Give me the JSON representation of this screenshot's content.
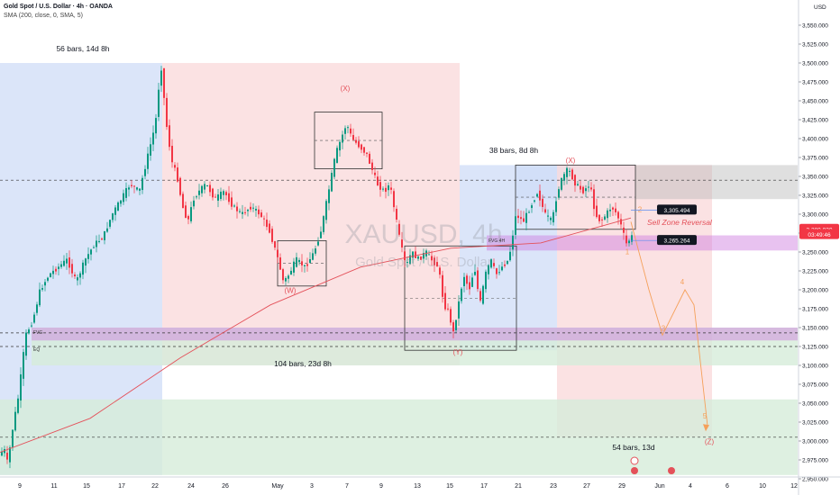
{
  "header": {
    "title": "Gold Spot / U.S. Dollar · 4h · OANDA",
    "indicator": "SMA (200, close, 0, SMA, 5)"
  },
  "axis": {
    "currency": "USD"
  },
  "watermark": {
    "symbol": "XAUUSD, 4h",
    "name": "Gold Spot / U.S. Dollar"
  },
  "colors": {
    "up": "#089981",
    "down": "#f23645",
    "sma": "#e4515a",
    "blue_zone": "#cfdcf7",
    "red_zone": "#f9d8da",
    "green_zone": "#d6ecd9",
    "purple_zone": "#cc77dd",
    "wave_label": "#e4515a",
    "projection": "#f5a05a"
  },
  "chart_data": {
    "type": "candlestick",
    "symbol": "XAUUSD",
    "timeframe": "4h",
    "ylim": [
      2940,
      3580
    ],
    "y_ticks": [
      2950,
      2975,
      3000,
      3025,
      3050,
      3075,
      3100,
      3125,
      3150,
      3175,
      3200,
      3225,
      3250,
      3275,
      3300,
      3325,
      3350,
      3375,
      3400,
      3425,
      3450,
      3475,
      3500,
      3525,
      3550
    ],
    "y_tick_labels": [
      "2,950.000",
      "2,975.000",
      "3,000.000",
      "3,025.000",
      "3,050.000",
      "3,075.000",
      "3,100.000",
      "3,125.000",
      "3,150.000",
      "3,175.000",
      "3,200.000",
      "3,225.000",
      "3,250.000",
      "3,275.000",
      "3,300.000",
      "3,325.000",
      "3,350.000",
      "3,375.000",
      "3,400.000",
      "3,425.000",
      "3,450.000",
      "3,475.000",
      "3,500.000",
      "3,525.000",
      "3,550.000"
    ],
    "x_tick_labels": [
      "9",
      "11",
      "15",
      "17",
      "22",
      "24",
      "26",
      "May",
      "3",
      "7",
      "9",
      "13",
      "15",
      "17",
      "21",
      "23",
      "27",
      "29",
      "Jun",
      "4",
      "6",
      "10",
      "12"
    ],
    "price_path": [
      [
        0,
        2980
      ],
      [
        6,
        2990
      ],
      [
        10,
        2970
      ],
      [
        16,
        3020
      ],
      [
        22,
        3060
      ],
      [
        30,
        3140
      ],
      [
        38,
        3160
      ],
      [
        46,
        3200
      ],
      [
        56,
        3220
      ],
      [
        66,
        3230
      ],
      [
        76,
        3240
      ],
      [
        86,
        3210
      ],
      [
        96,
        3240
      ],
      [
        106,
        3260
      ],
      [
        116,
        3270
      ],
      [
        126,
        3300
      ],
      [
        136,
        3320
      ],
      [
        146,
        3340
      ],
      [
        156,
        3330
      ],
      [
        166,
        3380
      ],
      [
        174,
        3420
      ],
      [
        180,
        3500
      ],
      [
        186,
        3420
      ],
      [
        192,
        3370
      ],
      [
        198,
        3350
      ],
      [
        204,
        3310
      ],
      [
        210,
        3290
      ],
      [
        216,
        3320
      ],
      [
        222,
        3330
      ],
      [
        230,
        3340
      ],
      [
        240,
        3320
      ],
      [
        250,
        3330
      ],
      [
        260,
        3310
      ],
      [
        270,
        3300
      ],
      [
        280,
        3310
      ],
      [
        290,
        3300
      ],
      [
        300,
        3280
      ],
      [
        310,
        3240
      ],
      [
        316,
        3210
      ],
      [
        322,
        3220
      ],
      [
        330,
        3240
      ],
      [
        340,
        3230
      ],
      [
        350,
        3250
      ],
      [
        358,
        3280
      ],
      [
        366,
        3330
      ],
      [
        374,
        3380
      ],
      [
        380,
        3400
      ],
      [
        386,
        3420
      ],
      [
        392,
        3400
      ],
      [
        400,
        3390
      ],
      [
        408,
        3380
      ],
      [
        414,
        3360
      ],
      [
        420,
        3340
      ],
      [
        428,
        3330
      ],
      [
        434,
        3340
      ],
      [
        440,
        3300
      ],
      [
        446,
        3260
      ],
      [
        452,
        3230
      ],
      [
        458,
        3250
      ],
      [
        466,
        3240
      ],
      [
        474,
        3250
      ],
      [
        480,
        3240
      ],
      [
        488,
        3230
      ],
      [
        494,
        3180
      ],
      [
        500,
        3170
      ],
      [
        504,
        3140
      ],
      [
        510,
        3180
      ],
      [
        516,
        3220
      ],
      [
        522,
        3200
      ],
      [
        528,
        3230
      ],
      [
        534,
        3180
      ],
      [
        540,
        3220
      ],
      [
        546,
        3240
      ],
      [
        552,
        3220
      ],
      [
        558,
        3230
      ],
      [
        566,
        3240
      ],
      [
        574,
        3300
      ],
      [
        582,
        3290
      ],
      [
        590,
        3310
      ],
      [
        598,
        3330
      ],
      [
        606,
        3300
      ],
      [
        614,
        3290
      ],
      [
        620,
        3330
      ],
      [
        626,
        3350
      ],
      [
        632,
        3360
      ],
      [
        640,
        3340
      ],
      [
        648,
        3330
      ],
      [
        656,
        3340
      ],
      [
        662,
        3300
      ],
      [
        668,
        3290
      ],
      [
        674,
        3300
      ],
      [
        680,
        3310
      ],
      [
        686,
        3300
      ],
      [
        692,
        3280
      ],
      [
        696,
        3260
      ],
      [
        702,
        3270
      ]
    ],
    "sma_200": [
      [
        0,
        2985
      ],
      [
        100,
        3030
      ],
      [
        200,
        3110
      ],
      [
        300,
        3180
      ],
      [
        400,
        3230
      ],
      [
        500,
        3255
      ],
      [
        600,
        3262
      ],
      [
        700,
        3295
      ]
    ],
    "zones": [
      {
        "color": "blue",
        "x": [
          0,
          180
        ],
        "y": [
          2955,
          3500
        ]
      },
      {
        "color": "red",
        "x": [
          180,
          510
        ],
        "y": [
          3100,
          3500
        ]
      },
      {
        "color": "blue",
        "x": [
          510,
          618
        ],
        "y": [
          3120,
          3365
        ]
      },
      {
        "color": "blue",
        "x": [
          572,
          705
        ],
        "y": [
          3320,
          3365
        ]
      },
      {
        "color": "red",
        "x": [
          618,
          790
        ],
        "y": [
          3005,
          3365
        ]
      },
      {
        "color": "grey",
        "x": [
          705,
          885
        ],
        "y": [
          3320,
          3365
        ]
      },
      {
        "color": "green",
        "x": [
          0,
          885
        ],
        "y": [
          2955,
          3055
        ]
      },
      {
        "color": "green",
        "x": [
          35,
          885
        ],
        "y": [
          3100,
          3150
        ]
      },
      {
        "color": "purple",
        "x": [
          35,
          885
        ],
        "y": [
          3133,
          3150
        ]
      },
      {
        "color": "purple",
        "x": [
          540,
          885
        ],
        "y": [
          3252,
          3272
        ]
      }
    ],
    "boxes": [
      {
        "x": [
          308,
          362
        ],
        "y": [
          3205,
          3265
        ]
      },
      {
        "x": [
          349,
          424
        ],
        "y": [
          3360,
          3435
        ]
      },
      {
        "x": [
          449,
          573
        ],
        "y": [
          3120,
          3258
        ]
      },
      {
        "x": [
          572,
          705
        ],
        "y": [
          3280,
          3365
        ]
      }
    ],
    "dashed_levels": [
      3005,
      3125,
      3143,
      3345
    ],
    "projection_path": [
      [
        700,
        3290
      ],
      [
        720,
        3200
      ],
      [
        735,
        3140
      ],
      [
        760,
        3200
      ],
      [
        770,
        3180
      ],
      [
        785,
        3020
      ]
    ],
    "annotations": {
      "range_1": "56 bars, 14d 8h",
      "range_2": "104 bars, 23d 8h",
      "range_3": "38 bars, 8d 8h",
      "range_4": "54 bars, 13d",
      "sell_zone": "Sell Zone Reversal",
      "fvg_1": "FVG",
      "fvg_2": "FVG 4H",
      "eq": "EQ"
    },
    "wave_labels": [
      {
        "text": "(X)",
        "at": [
          383,
          3463
        ]
      },
      {
        "text": "(W)",
        "at": [
          322,
          3196
        ]
      },
      {
        "text": "(Y)",
        "at": [
          508,
          3114
        ]
      },
      {
        "text": "(X)",
        "at": [
          633,
          3368
        ]
      },
      {
        "text": "(Z)",
        "at": [
          787,
          2996
        ]
      },
      {
        "text": "1",
        "at": [
          696,
          3247
        ]
      },
      {
        "text": "2",
        "at": [
          710,
          3303
        ]
      },
      {
        "text": "3",
        "at": [
          736,
          3146
        ]
      },
      {
        "text": "4",
        "at": [
          757,
          3207
        ]
      },
      {
        "text": "5",
        "at": [
          782,
          3030
        ]
      }
    ],
    "price_labels": [
      {
        "text": "3,305.494",
        "value": 3305.494,
        "bg": "#131722"
      },
      {
        "text": "3,265.264",
        "value": 3265.264,
        "bg": "#131722"
      },
      {
        "text": "3,280.020",
        "value": 3280.02,
        "bg": "#f23645"
      },
      {
        "text": "03:49:46",
        "value": 3273,
        "bg": "#f23645"
      }
    ]
  }
}
